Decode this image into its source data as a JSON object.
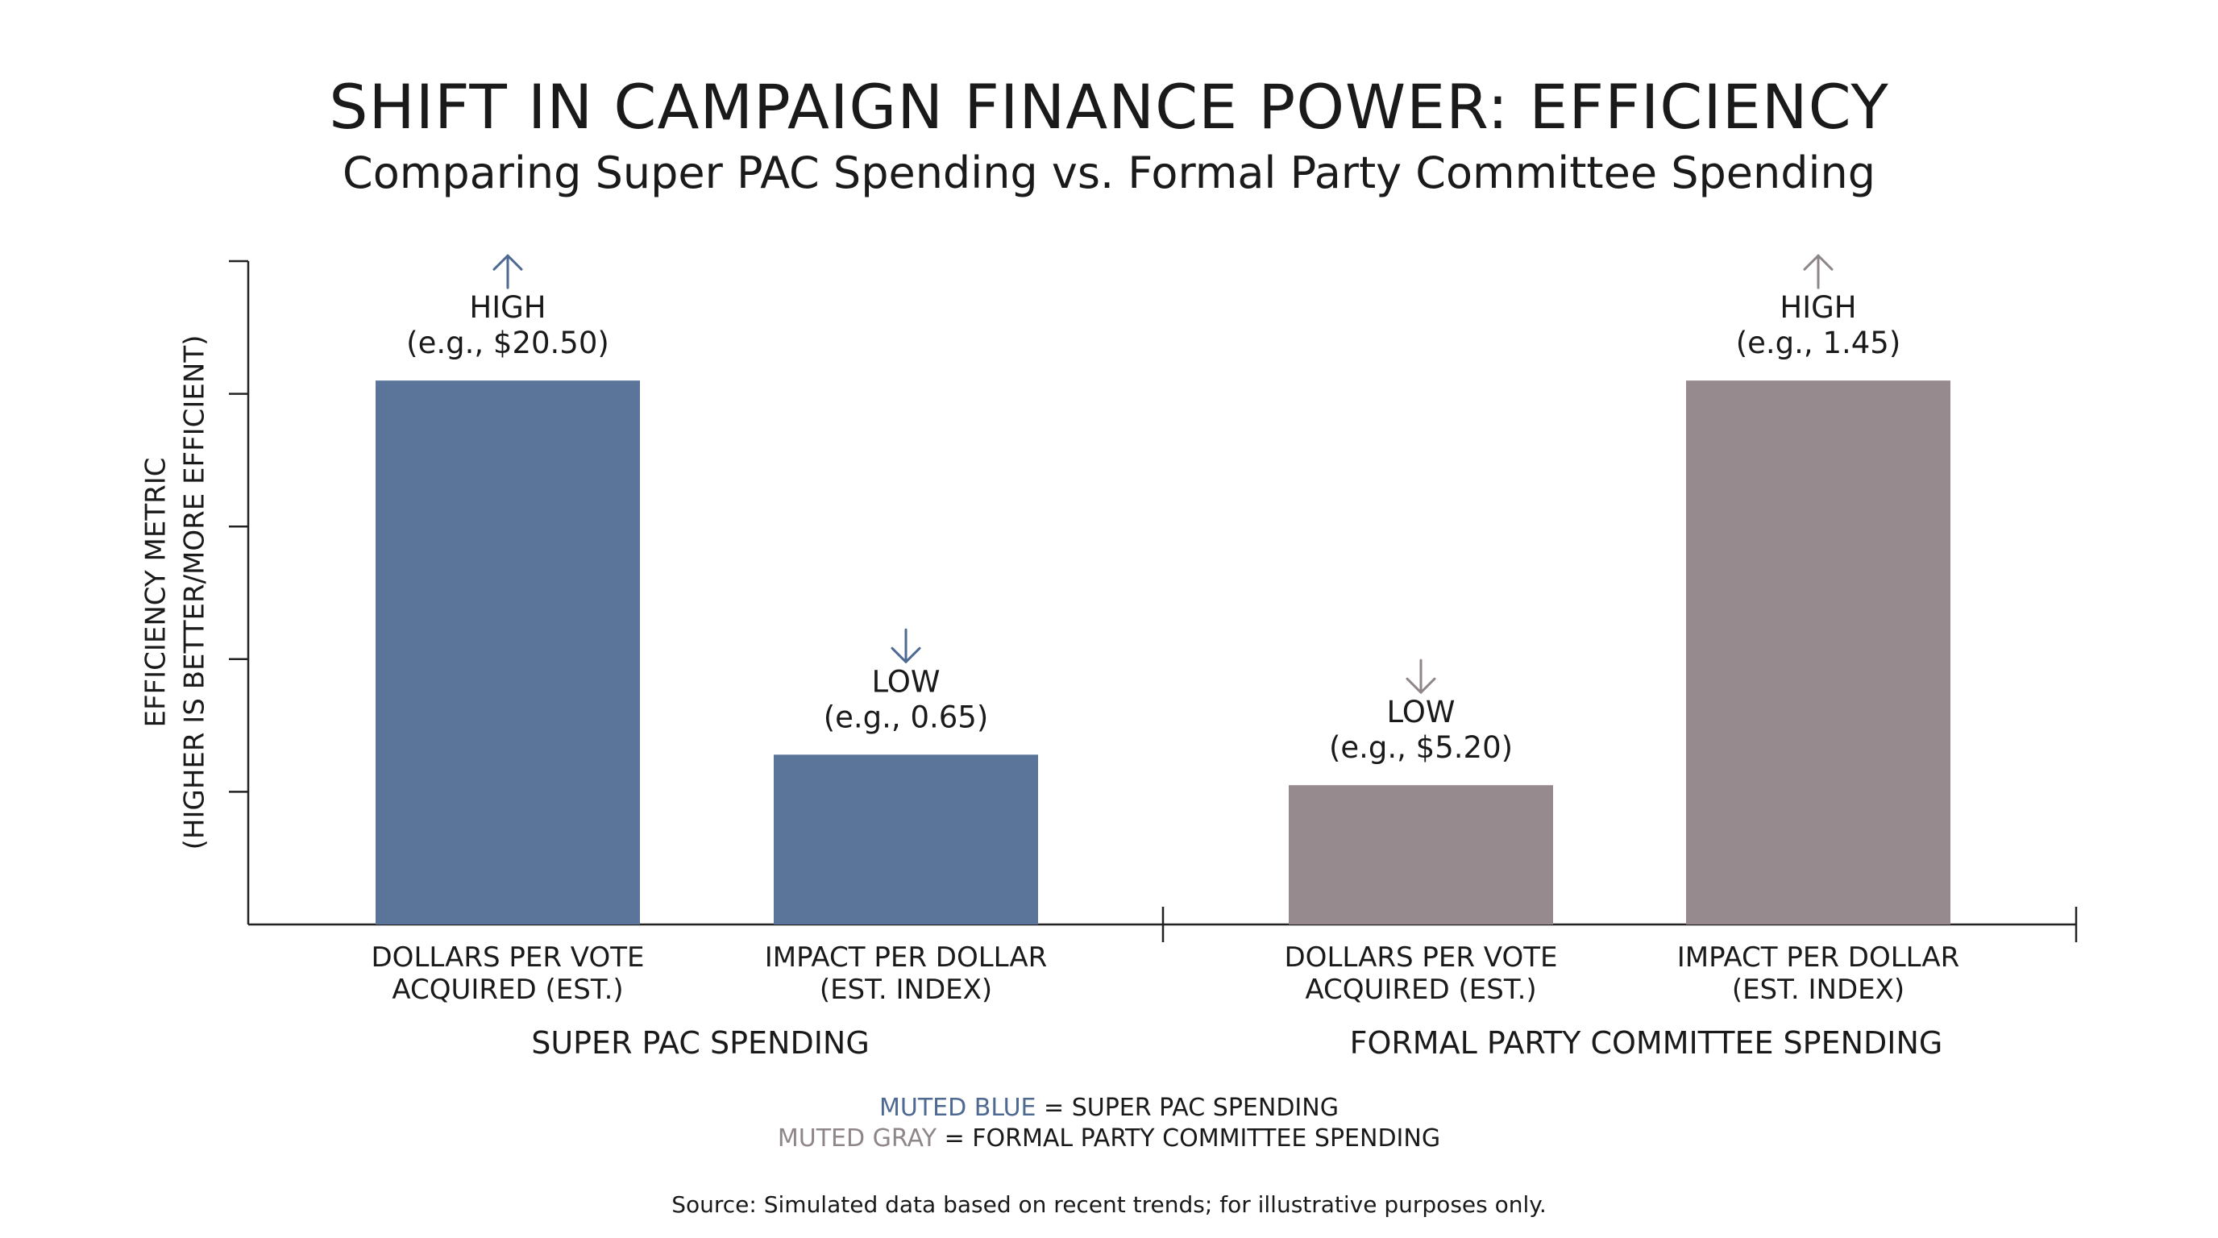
{
  "title": "SHIFT IN CAMPAIGN FINANCE POWER: EFFICIENCY",
  "subtitle": "Comparing Super PAC Spending vs. Formal Party Committee Spending",
  "chart_data": {
    "type": "bar",
    "title": "SHIFT IN CAMPAIGN FINANCE POWER: EFFICIENCY",
    "subtitle": "Comparing Super PAC Spending vs. Formal Party Committee Spending",
    "ylabel": [
      "EFFICIENCY METRIC",
      "(HIGHER IS BETTER/MORE EFFICIENT)"
    ],
    "ylim": [
      0,
      5
    ],
    "y_ticks_count": 5,
    "y_tick_labels_shown": false,
    "grid": false,
    "groups": [
      {
        "name": "SUPER PAC SPENDING",
        "color": "#5a7599",
        "bars": [
          {
            "category": [
              "DOLLARS PER VOTE",
              "ACQUIRED (EST.)"
            ],
            "value": 4.1,
            "level": "HIGH",
            "example": "(e.g., $20.50)",
            "arrow": "up"
          },
          {
            "category": [
              "IMPACT PER DOLLAR",
              "(EST. INDEX)"
            ],
            "value": 1.28,
            "level": "LOW",
            "example": "(e.g., 0.65)",
            "arrow": "down"
          }
        ]
      },
      {
        "name": "FORMAL PARTY COMMITTEE SPENDING",
        "color": "#978a8e",
        "bars": [
          {
            "category": [
              "DOLLARS PER VOTE",
              "ACQUIRED (EST.)"
            ],
            "value": 1.05,
            "level": "LOW",
            "example": "(e.g., $5.20)",
            "arrow": "down"
          },
          {
            "category": [
              "IMPACT PER DOLLAR",
              "(EST. INDEX)"
            ],
            "value": 4.1,
            "level": "HIGH",
            "example": "(e.g., 1.45)",
            "arrow": "up"
          }
        ]
      }
    ],
    "arrow_colors": {
      "blue": "#4e6a92",
      "gray": "#8e8689"
    }
  },
  "legend": {
    "blue_label": "MUTED BLUE",
    "blue_text": " = SUPER PAC SPENDING",
    "gray_label": "MUTED GRAY",
    "gray_text": " = FORMAL PARTY COMMITTEE SPENDING"
  },
  "source": "Source: Simulated data based on recent trends; for illustrative purposes only."
}
